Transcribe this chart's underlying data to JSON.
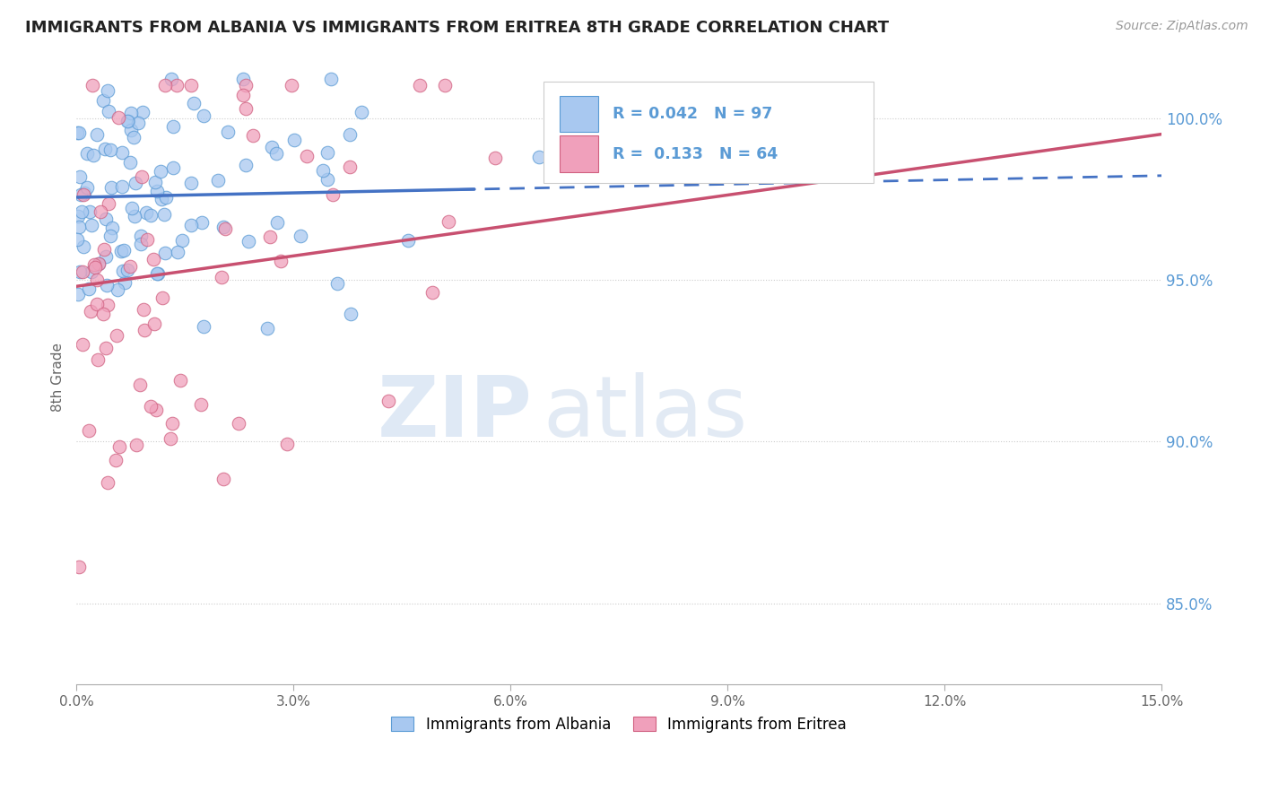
{
  "title": "IMMIGRANTS FROM ALBANIA VS IMMIGRANTS FROM ERITREA 8TH GRADE CORRELATION CHART",
  "source": "Source: ZipAtlas.com",
  "ylabel": "8th Grade",
  "xlim": [
    0.0,
    15.0
  ],
  "ylim": [
    82.5,
    101.5
  ],
  "yticks": [
    85.0,
    90.0,
    95.0,
    100.0
  ],
  "xticks": [
    0.0,
    3.0,
    6.0,
    9.0,
    12.0,
    15.0
  ],
  "xtick_labels": [
    "0.0%",
    "3.0%",
    "6.0%",
    "9.0%",
    "12.0%",
    "15.0%"
  ],
  "legend_labels_bottom": [
    "Immigrants from Albania",
    "Immigrants from Eritrea"
  ],
  "r_albania": 0.042,
  "n_albania": 97,
  "r_eritrea": 0.133,
  "n_eritrea": 64,
  "color_albania": "#A8C8F0",
  "color_eritrea": "#F0A0BB",
  "edge_color_albania": "#5B9BD5",
  "edge_color_eritrea": "#D06080",
  "line_color_albania": "#4472C4",
  "line_color_eritrea": "#C85070",
  "watermark_zip": "ZIP",
  "watermark_atlas": "atlas",
  "background_color": "#FFFFFF",
  "title_color": "#222222",
  "axis_label_color": "#5B9BD5",
  "ylabel_color": "#666666",
  "tick_color": "#666666",
  "grid_color": "#CCCCCC",
  "legend_box_edge": "#CCCCCC",
  "line_albania_x0": 0.0,
  "line_albania_y0": 97.55,
  "line_albania_x1": 5.5,
  "line_albania_y1": 97.8,
  "line_albania_dash_x0": 5.3,
  "line_albania_dash_y0": 97.79,
  "line_albania_dash_x1": 15.0,
  "line_albania_dash_y1": 98.22,
  "line_eritrea_x0": 0.0,
  "line_eritrea_y0": 94.8,
  "line_eritrea_x1": 15.0,
  "line_eritrea_y1": 99.5,
  "seed": 12
}
